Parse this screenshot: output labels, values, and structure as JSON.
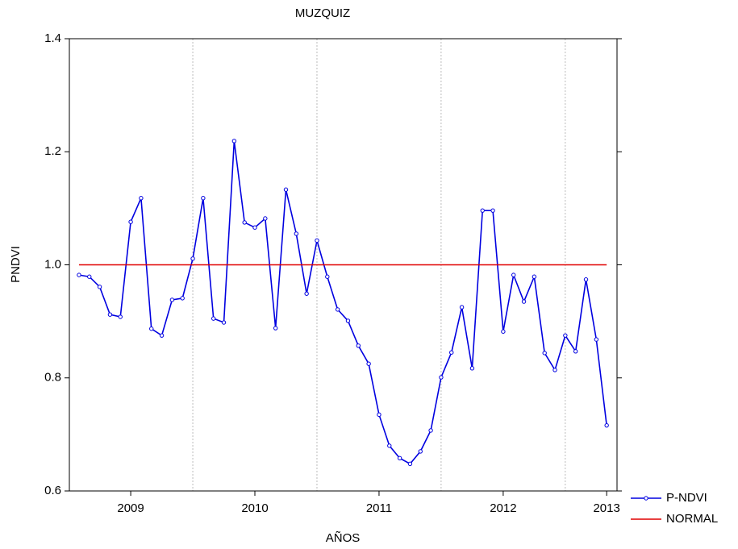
{
  "chart_data": {
    "type": "line",
    "title": "MUZQUIZ",
    "x_label": "AÑOS",
    "y_label": "PNDVI",
    "x": [
      0,
      1,
      2,
      3,
      4,
      5,
      6,
      7,
      8,
      9,
      10,
      11,
      12,
      13,
      14,
      15,
      16,
      17,
      18,
      19,
      20,
      21,
      22,
      23,
      24,
      25,
      26,
      27,
      28,
      29,
      30,
      31,
      32,
      33,
      34,
      35,
      36,
      37,
      38,
      39,
      40,
      41,
      42,
      43,
      44,
      45,
      46,
      47,
      48,
      49,
      50,
      51
    ],
    "xlim": [
      -0.93,
      52
    ],
    "xticks": [
      {
        "value": 5,
        "label": "2009"
      },
      {
        "value": 17,
        "label": "2010"
      },
      {
        "value": 29,
        "label": "2011"
      },
      {
        "value": 41,
        "label": "2012"
      },
      {
        "value": 51,
        "label": "2013"
      }
    ],
    "ylim": [
      0.6,
      1.4
    ],
    "yticks": [
      0.6,
      0.8,
      {
        "value": 1,
        "label": "1.0"
      },
      1.2,
      1.4
    ],
    "grid": true,
    "legend": "bottom-right-outside",
    "series": [
      {
        "name": "P-NDVI",
        "color": "#0000e0",
        "marker": true,
        "values": [
          0.982,
          0.979,
          0.961,
          0.912,
          0.908,
          1.076,
          1.118,
          0.887,
          0.875,
          0.938,
          0.941,
          1.011,
          1.118,
          0.905,
          0.898,
          1.219,
          1.075,
          1.066,
          1.082,
          0.888,
          1.133,
          1.055,
          0.949,
          1.043,
          0.979,
          0.921,
          0.901,
          0.857,
          0.825,
          0.735,
          0.68,
          0.658,
          0.648,
          0.67,
          0.707,
          0.801,
          0.845,
          0.925,
          0.817,
          1.096,
          1.096,
          0.882,
          0.982,
          0.935,
          0.979,
          0.844,
          0.814,
          0.875,
          0.847,
          0.974,
          0.868,
          0.716
        ]
      },
      {
        "name": "NORMAL",
        "color": "#e00000",
        "marker": false,
        "values": [
          1,
          1,
          1,
          1,
          1,
          1,
          1,
          1,
          1,
          1,
          1,
          1,
          1,
          1,
          1,
          1,
          1,
          1,
          1,
          1,
          1,
          1,
          1,
          1,
          1,
          1,
          1,
          1,
          1,
          1,
          1,
          1,
          1,
          1,
          1,
          1,
          1,
          1,
          1,
          1,
          1,
          1,
          1,
          1,
          1,
          1,
          1,
          1,
          1,
          1,
          1,
          1
        ]
      }
    ]
  }
}
